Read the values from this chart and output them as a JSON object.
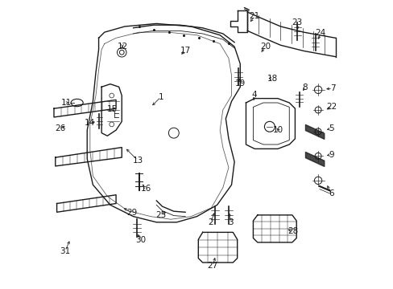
{
  "background_color": "#ffffff",
  "fig_width": 4.89,
  "fig_height": 3.6,
  "dpi": 100,
  "line_color": "#1a1a1a",
  "text_color": "#1a1a1a",
  "part_fontsize": 7.5
}
